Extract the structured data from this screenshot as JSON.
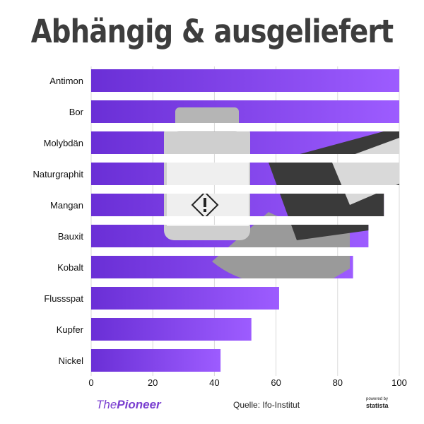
{
  "chart_data": {
    "type": "bar",
    "orientation": "horizontal",
    "title": "Abhängig & ausgeliefert",
    "categories": [
      "Antimon",
      "Bor",
      "Molybdän",
      "Naturgraphit",
      "Mangan",
      "Bauxit",
      "Kobalt",
      "Flussspat",
      "Kupfer",
      "Nickel"
    ],
    "values": [
      100,
      100,
      100,
      100,
      95,
      90,
      85,
      61,
      52,
      42
    ],
    "xlim": [
      0,
      100
    ],
    "xticks": [
      "0",
      "20",
      "40",
      "60",
      "80",
      "100"
    ],
    "grid": true,
    "colors": {
      "bar_start": "#6a2fd6",
      "bar_end": "#9d5cff",
      "photo_gray": "#8a8a8a",
      "grid": "#d9d9d9"
    }
  },
  "footer": {
    "logo_prefix": "The",
    "logo_main": "Pioneer",
    "source": "Quelle: Ifo-Institut",
    "powered_by": "powered by",
    "brand": "statista"
  }
}
